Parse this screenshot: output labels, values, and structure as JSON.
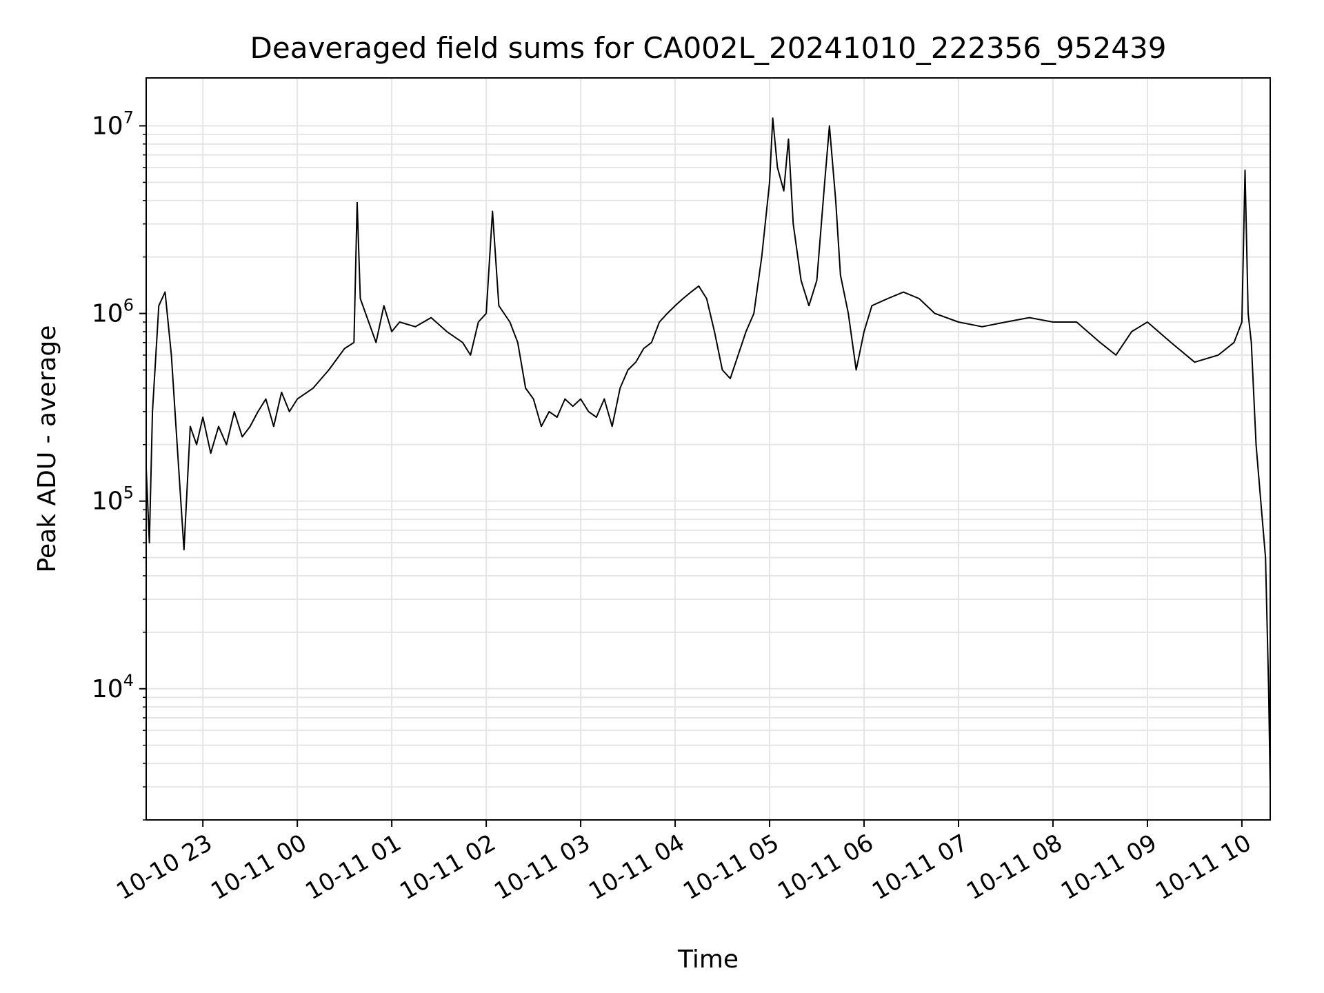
{
  "chart_data": {
    "type": "line",
    "title": "Deaveraged field sums for CA002L_20241010_222356_952439",
    "xlabel": "Time",
    "ylabel": "Peak ADU - average",
    "yscale": "log",
    "grid": true,
    "x_tick_labels": [
      "10-10 23",
      "10-11 00",
      "10-11 01",
      "10-11 02",
      "10-11 03",
      "10-11 04",
      "10-11 05",
      "10-11 06",
      "10-11 07",
      "10-11 08",
      "10-11 09",
      "10-11 10"
    ],
    "y_tick_labels": [
      {
        "base": "10",
        "exp": "4",
        "value": 10000
      },
      {
        "base": "10",
        "exp": "5",
        "value": 100000
      },
      {
        "base": "10",
        "exp": "6",
        "value": 1000000
      },
      {
        "base": "10",
        "exp": "7",
        "value": 10000000
      }
    ],
    "xlim": [
      "2024-10-10 22:24",
      "2024-10-11 10:18"
    ],
    "ylim": [
      2000,
      18000000
    ],
    "line_color": "#000000",
    "grid_color": "#e5e5e5",
    "series": [
      {
        "points": [
          [
            "2024-10-10 22:24",
            150000
          ],
          [
            "2024-10-10 22:26",
            60000
          ],
          [
            "2024-10-10 22:28",
            300000
          ],
          [
            "2024-10-10 22:32",
            1100000
          ],
          [
            "2024-10-10 22:36",
            1300000
          ],
          [
            "2024-10-10 22:40",
            600000
          ],
          [
            "2024-10-10 22:44",
            180000
          ],
          [
            "2024-10-10 22:48",
            55000
          ],
          [
            "2024-10-10 22:52",
            250000
          ],
          [
            "2024-10-10 22:56",
            200000
          ],
          [
            "2024-10-10 23:00",
            280000
          ],
          [
            "2024-10-10 23:05",
            180000
          ],
          [
            "2024-10-10 23:10",
            250000
          ],
          [
            "2024-10-10 23:15",
            200000
          ],
          [
            "2024-10-10 23:20",
            300000
          ],
          [
            "2024-10-10 23:25",
            220000
          ],
          [
            "2024-10-10 23:30",
            250000
          ],
          [
            "2024-10-10 23:35",
            300000
          ],
          [
            "2024-10-10 23:40",
            350000
          ],
          [
            "2024-10-10 23:45",
            250000
          ],
          [
            "2024-10-10 23:50",
            380000
          ],
          [
            "2024-10-10 23:55",
            300000
          ],
          [
            "2024-10-11 00:00",
            350000
          ],
          [
            "2024-10-11 00:10",
            400000
          ],
          [
            "2024-10-11 00:20",
            500000
          ],
          [
            "2024-10-11 00:30",
            650000
          ],
          [
            "2024-10-11 00:36",
            700000
          ],
          [
            "2024-10-11 00:38",
            3900000
          ],
          [
            "2024-10-11 00:40",
            1200000
          ],
          [
            "2024-10-11 00:50",
            700000
          ],
          [
            "2024-10-11 00:55",
            1100000
          ],
          [
            "2024-10-11 01:00",
            800000
          ],
          [
            "2024-10-11 01:05",
            900000
          ],
          [
            "2024-10-11 01:15",
            850000
          ],
          [
            "2024-10-11 01:25",
            950000
          ],
          [
            "2024-10-11 01:35",
            800000
          ],
          [
            "2024-10-11 01:45",
            700000
          ],
          [
            "2024-10-11 01:50",
            600000
          ],
          [
            "2024-10-11 01:55",
            900000
          ],
          [
            "2024-10-11 02:00",
            1000000
          ],
          [
            "2024-10-11 02:04",
            3500000
          ],
          [
            "2024-10-11 02:08",
            1100000
          ],
          [
            "2024-10-11 02:15",
            900000
          ],
          [
            "2024-10-11 02:20",
            700000
          ],
          [
            "2024-10-11 02:25",
            400000
          ],
          [
            "2024-10-11 02:30",
            350000
          ],
          [
            "2024-10-11 02:35",
            250000
          ],
          [
            "2024-10-11 02:40",
            300000
          ],
          [
            "2024-10-11 02:45",
            280000
          ],
          [
            "2024-10-11 02:50",
            350000
          ],
          [
            "2024-10-11 02:55",
            320000
          ],
          [
            "2024-10-11 03:00",
            350000
          ],
          [
            "2024-10-11 03:05",
            300000
          ],
          [
            "2024-10-11 03:10",
            280000
          ],
          [
            "2024-10-11 03:15",
            350000
          ],
          [
            "2024-10-11 03:20",
            250000
          ],
          [
            "2024-10-11 03:25",
            400000
          ],
          [
            "2024-10-11 03:30",
            500000
          ],
          [
            "2024-10-11 03:35",
            550000
          ],
          [
            "2024-10-11 03:40",
            650000
          ],
          [
            "2024-10-11 03:45",
            700000
          ],
          [
            "2024-10-11 03:50",
            900000
          ],
          [
            "2024-10-11 03:55",
            1000000
          ],
          [
            "2024-10-11 04:00",
            1100000
          ],
          [
            "2024-10-11 04:05",
            1200000
          ],
          [
            "2024-10-11 04:10",
            1300000
          ],
          [
            "2024-10-11 04:15",
            1400000
          ],
          [
            "2024-10-11 04:20",
            1200000
          ],
          [
            "2024-10-11 04:25",
            800000
          ],
          [
            "2024-10-11 04:30",
            500000
          ],
          [
            "2024-10-11 04:35",
            450000
          ],
          [
            "2024-10-11 04:40",
            600000
          ],
          [
            "2024-10-11 04:45",
            800000
          ],
          [
            "2024-10-11 04:50",
            1000000
          ],
          [
            "2024-10-11 04:55",
            2000000
          ],
          [
            "2024-10-11 05:00",
            5000000
          ],
          [
            "2024-10-11 05:02",
            11000000
          ],
          [
            "2024-10-11 05:05",
            6000000
          ],
          [
            "2024-10-11 05:09",
            4500000
          ],
          [
            "2024-10-11 05:12",
            8500000
          ],
          [
            "2024-10-11 05:15",
            3000000
          ],
          [
            "2024-10-11 05:20",
            1500000
          ],
          [
            "2024-10-11 05:25",
            1100000
          ],
          [
            "2024-10-11 05:30",
            1500000
          ],
          [
            "2024-10-11 05:35",
            5000000
          ],
          [
            "2024-10-11 05:38",
            10000000
          ],
          [
            "2024-10-11 05:42",
            4000000
          ],
          [
            "2024-10-11 05:45",
            1600000
          ],
          [
            "2024-10-11 05:50",
            1000000
          ],
          [
            "2024-10-11 05:55",
            500000
          ],
          [
            "2024-10-11 06:00",
            800000
          ],
          [
            "2024-10-11 06:05",
            1100000
          ],
          [
            "2024-10-11 06:15",
            1200000
          ],
          [
            "2024-10-11 06:25",
            1300000
          ],
          [
            "2024-10-11 06:35",
            1200000
          ],
          [
            "2024-10-11 06:45",
            1000000
          ],
          [
            "2024-10-11 07:00",
            900000
          ],
          [
            "2024-10-11 07:15",
            850000
          ],
          [
            "2024-10-11 07:30",
            900000
          ],
          [
            "2024-10-11 07:45",
            950000
          ],
          [
            "2024-10-11 08:00",
            900000
          ],
          [
            "2024-10-11 08:15",
            900000
          ],
          [
            "2024-10-11 08:30",
            700000
          ],
          [
            "2024-10-11 08:40",
            600000
          ],
          [
            "2024-10-11 08:50",
            800000
          ],
          [
            "2024-10-11 09:00",
            900000
          ],
          [
            "2024-10-11 09:15",
            700000
          ],
          [
            "2024-10-11 09:30",
            550000
          ],
          [
            "2024-10-11 09:45",
            600000
          ],
          [
            "2024-10-11 09:55",
            700000
          ],
          [
            "2024-10-11 10:00",
            900000
          ],
          [
            "2024-10-11 10:02",
            5800000
          ],
          [
            "2024-10-11 10:04",
            1000000
          ],
          [
            "2024-10-11 10:06",
            700000
          ],
          [
            "2024-10-11 10:09",
            200000
          ],
          [
            "2024-10-11 10:12",
            100000
          ],
          [
            "2024-10-11 10:15",
            50000
          ],
          [
            "2024-10-11 10:17",
            10000
          ],
          [
            "2024-10-11 10:18",
            3000
          ]
        ]
      }
    ]
  }
}
